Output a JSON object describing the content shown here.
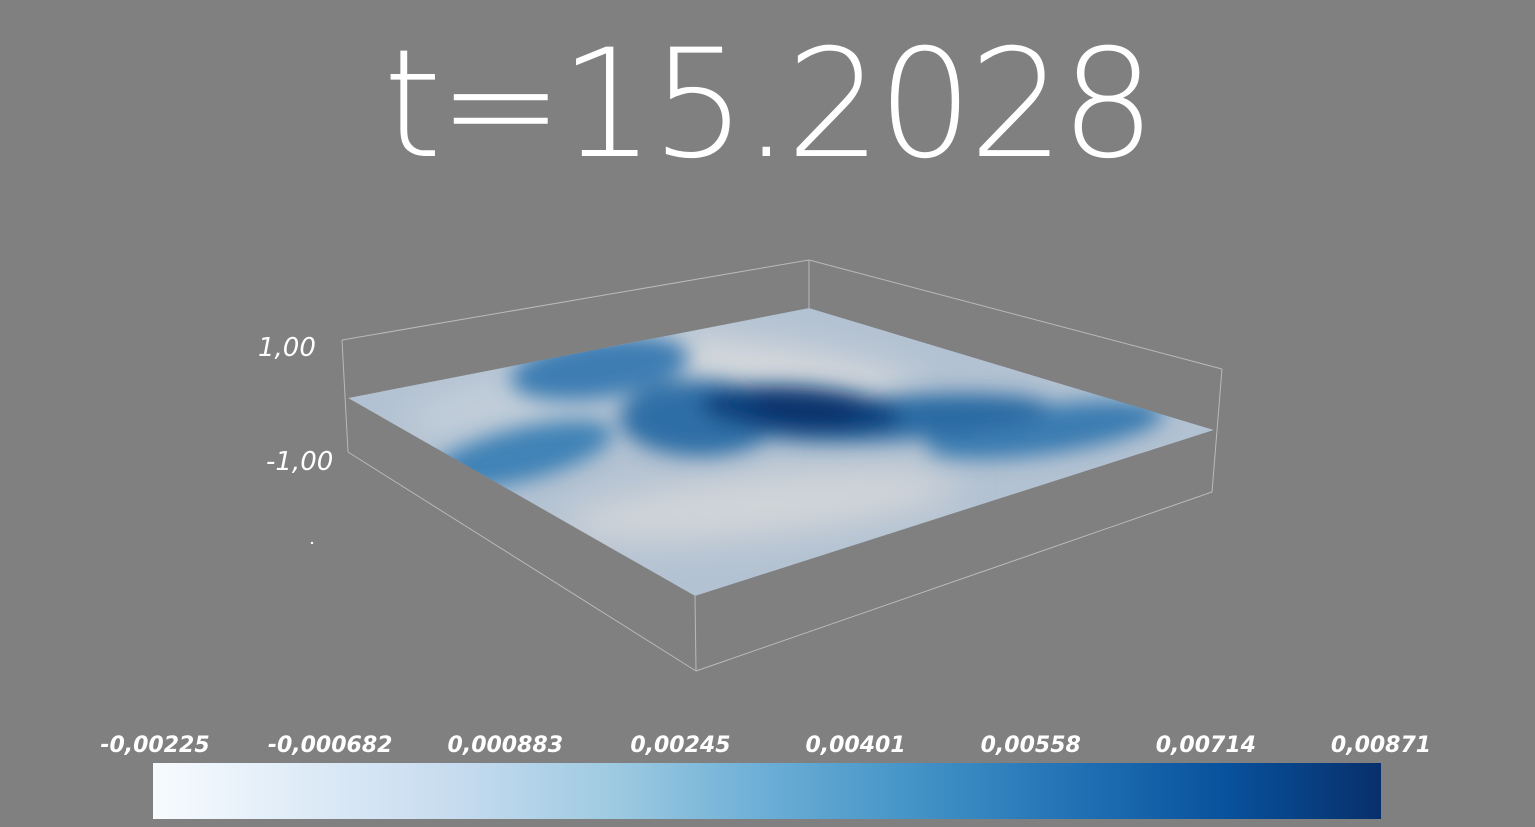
{
  "title": "t=15.2028",
  "chart_data": {
    "type": "heatmap",
    "title": "t=15.2028",
    "z_axis_ticks": [
      "1,00",
      "-1,00"
    ],
    "colorbar": {
      "colormap": "Blues",
      "tick_labels": [
        "-0,00225",
        "-0,000682",
        "0,000883",
        "0,00245",
        "0,00401",
        "0,00558",
        "0,00714",
        "0,00871"
      ],
      "range": [
        -0.00225,
        0.00871
      ],
      "placement": "bottom",
      "colors": [
        "#f7fbff",
        "#deebf7",
        "#c6dbef",
        "#9ecae1",
        "#6baed6",
        "#4292c6",
        "#2171b5",
        "#08519c",
        "#08306b"
      ]
    },
    "background_color": "#808080",
    "bounding_box_color": "#c8c8c8"
  }
}
